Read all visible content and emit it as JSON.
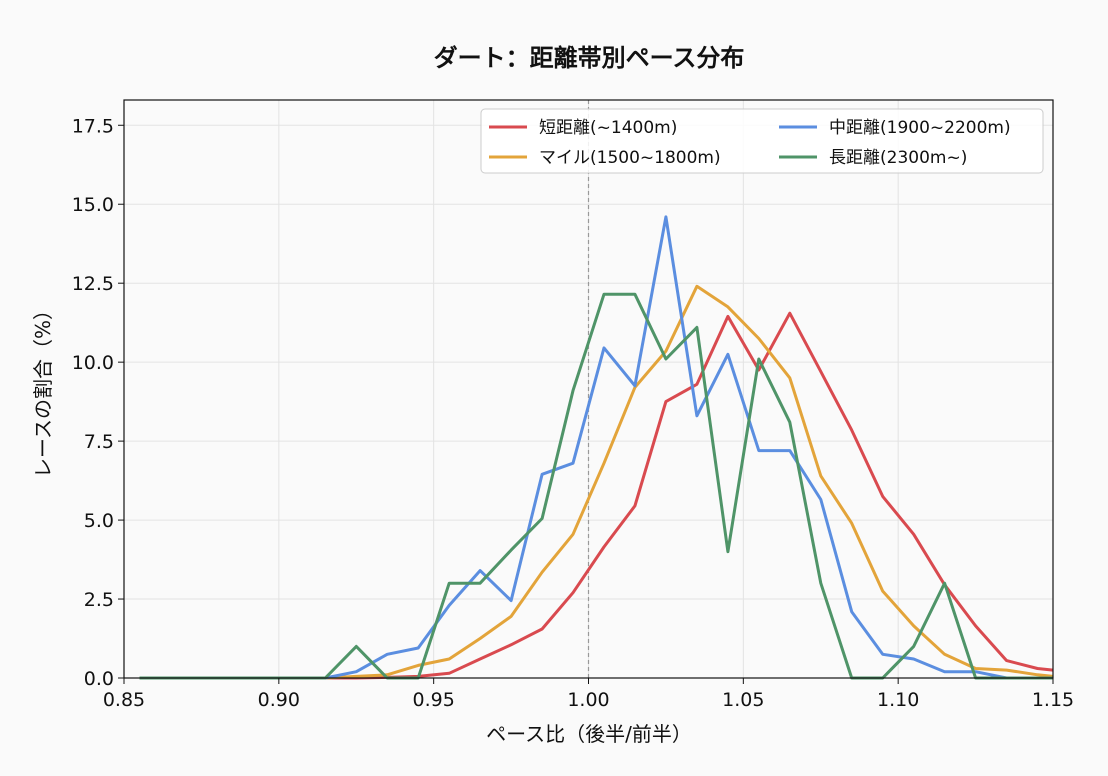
{
  "chart_data": {
    "type": "line",
    "title": "ダート：距離帯別ペース分布",
    "xlabel": "ペース比（後半/前半）",
    "ylabel": "レースの割合（%）",
    "xlim": [
      0.85,
      1.15
    ],
    "ylim": [
      0,
      18.3
    ],
    "x_ticks": [
      "0.85",
      "0.90",
      "0.95",
      "1.00",
      "1.05",
      "1.10",
      "1.15"
    ],
    "y_ticks": [
      "0.0",
      "2.5",
      "5.0",
      "7.5",
      "10.0",
      "12.5",
      "15.0",
      "17.5"
    ],
    "grid": true,
    "legend_position": "top-right",
    "reference_line_x": 1.0,
    "x": [
      0.855,
      0.865,
      0.875,
      0.885,
      0.895,
      0.905,
      0.915,
      0.925,
      0.935,
      0.945,
      0.955,
      0.965,
      0.975,
      0.985,
      0.995,
      1.005,
      1.015,
      1.025,
      1.035,
      1.045,
      1.055,
      1.065,
      1.075,
      1.085,
      1.095,
      1.105,
      1.115,
      1.125,
      1.135,
      1.145,
      1.15
    ],
    "series": [
      {
        "name": "短距離(~1400m)",
        "color": "#d94a4f",
        "values": [
          0,
          0,
          0,
          0,
          0,
          0,
          0,
          0,
          0.02,
          0.05,
          0.15,
          0.6,
          1.05,
          1.55,
          2.7,
          4.15,
          5.45,
          8.75,
          9.3,
          11.45,
          9.75,
          11.55,
          9.7,
          7.85,
          5.75,
          4.55,
          2.95,
          1.65,
          0.55,
          0.3,
          0.25
        ]
      },
      {
        "name": "マイル(1500~1800m)",
        "color": "#e3a43a",
        "values": [
          0,
          0,
          0,
          0,
          0,
          0,
          0,
          0.05,
          0.1,
          0.4,
          0.6,
          1.25,
          1.95,
          3.35,
          4.55,
          6.8,
          9.2,
          10.35,
          12.4,
          11.75,
          10.75,
          9.5,
          6.4,
          4.9,
          2.75,
          1.65,
          0.75,
          0.3,
          0.25,
          0.1,
          0.05
        ]
      },
      {
        "name": "中距離(1900~2200m)",
        "color": "#5b8ee0",
        "values": [
          0,
          0,
          0,
          0,
          0,
          0,
          0,
          0.2,
          0.75,
          0.95,
          2.3,
          3.4,
          2.45,
          6.45,
          6.8,
          10.45,
          9.25,
          14.6,
          8.3,
          10.25,
          7.2,
          7.2,
          5.65,
          2.1,
          0.75,
          0.6,
          0.2,
          0.2,
          0,
          0,
          0
        ]
      },
      {
        "name": "長距離(2300m~)",
        "color": "#4f9468",
        "values": [
          0,
          0,
          0,
          0,
          0,
          0,
          0,
          1.0,
          0,
          0,
          3.0,
          3.0,
          4.05,
          5.05,
          9.1,
          12.15,
          12.15,
          10.1,
          11.1,
          4.0,
          10.1,
          8.1,
          3.0,
          0,
          0,
          1.0,
          3.0,
          0,
          0,
          0,
          0
        ]
      }
    ]
  }
}
